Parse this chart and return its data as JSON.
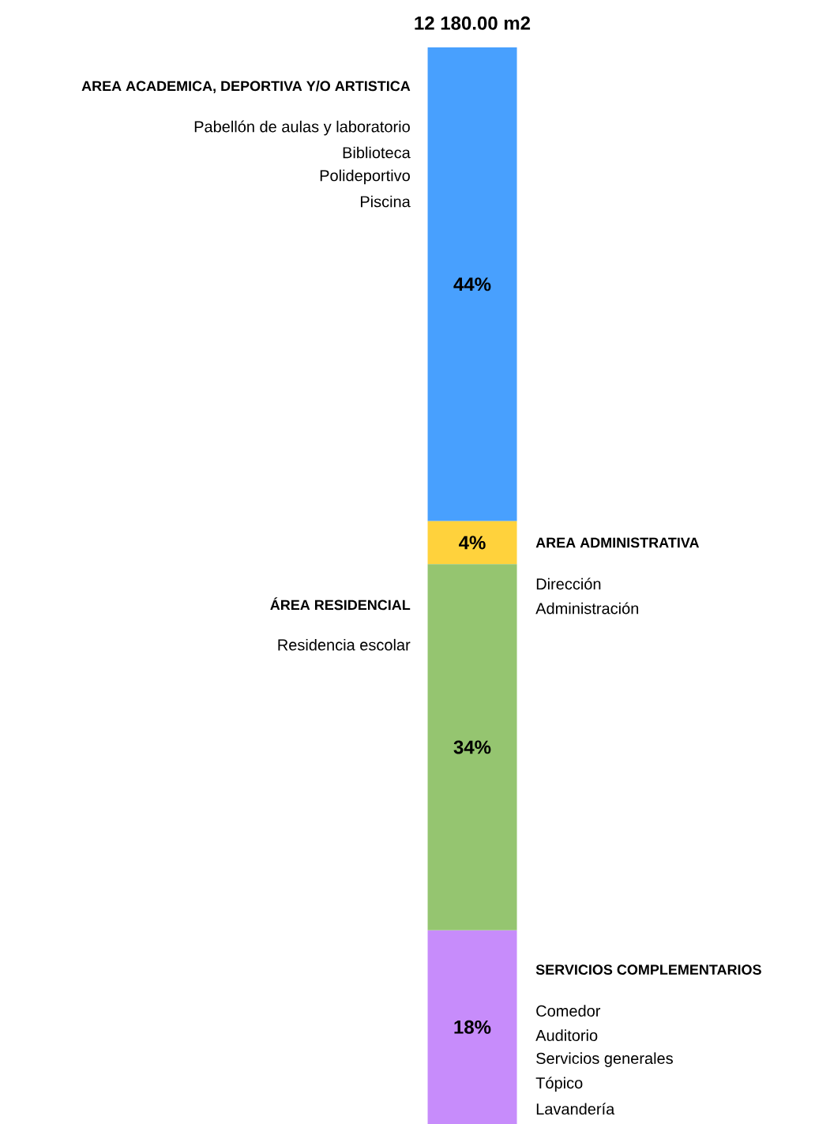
{
  "chart_data": {
    "type": "bar",
    "stacked": true,
    "title": "12 180.00 m2",
    "categories": [
      null
    ],
    "series": [
      {
        "name": "SERVICIOS COMPLEMENTARIOS",
        "color": "#c78cfb",
        "values": [
          18
        ],
        "value_labels": [
          "18%"
        ]
      },
      {
        "name": "ÁREA RESIDENCIAL",
        "color": "#95c570",
        "values": [
          34
        ],
        "value_labels": [
          "34%"
        ]
      },
      {
        "name": "AREA ADMINISTRATIVA",
        "color": "#ffd23c",
        "values": [
          4
        ],
        "value_labels": [
          "4%"
        ]
      },
      {
        "name": "AREA ACADEMICA, DEPORTIVA Y/O ARTISTICA",
        "color": "#48a0fe",
        "values": [
          44
        ],
        "value_labels": [
          "44%"
        ]
      }
    ],
    "annotations": [
      "Pabellón de aulas y laboratorio",
      "Biblioteca",
      "Polideportivo",
      "Piscina",
      "Dirección",
      "Administración",
      "Residencia escolar",
      "Comedor",
      "Auditorio",
      "Servicios generales",
      "Tópico",
      "Lavandería"
    ]
  }
}
